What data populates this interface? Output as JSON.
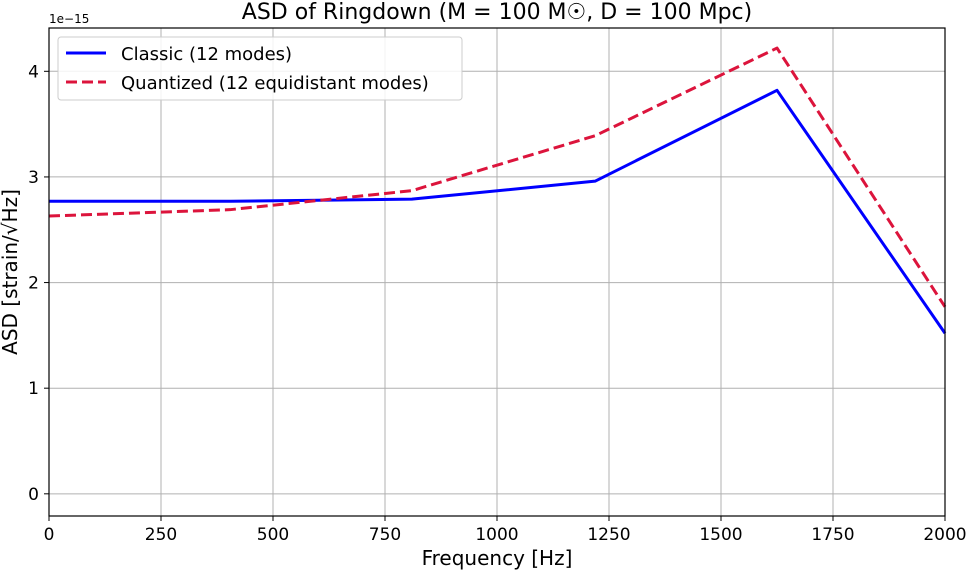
{
  "chart_data": {
    "type": "line",
    "title": "ASD of Ringdown (M = 100 M☉, D = 100 Mpc)",
    "xlabel": "Frequency [Hz]",
    "ylabel": "ASD [strain/√Hz]",
    "y_offset_label": "1e−15",
    "xlim": [
      0,
      2000
    ],
    "ylim": [
      -0.21,
      4.41
    ],
    "xticks": [
      0,
      250,
      500,
      750,
      1000,
      1250,
      1500,
      1750,
      2000
    ],
    "yticks": [
      0,
      1,
      2,
      3,
      4
    ],
    "grid": true,
    "legend_position": "top-left",
    "series": [
      {
        "name": "Classic (12 modes)",
        "color": "#0000ff",
        "style": "solid",
        "x": [
          0,
          406,
          810,
          1219,
          1625,
          2000
        ],
        "y": [
          2.77,
          2.77,
          2.79,
          2.96,
          3.82,
          1.52
        ]
      },
      {
        "name": "Quantized (12 equidistant modes)",
        "color": "#dc143c",
        "style": "dashed",
        "x": [
          0,
          404,
          810,
          1219,
          1625,
          2000
        ],
        "y": [
          2.63,
          2.69,
          2.87,
          3.39,
          4.22,
          1.77
        ]
      }
    ]
  }
}
